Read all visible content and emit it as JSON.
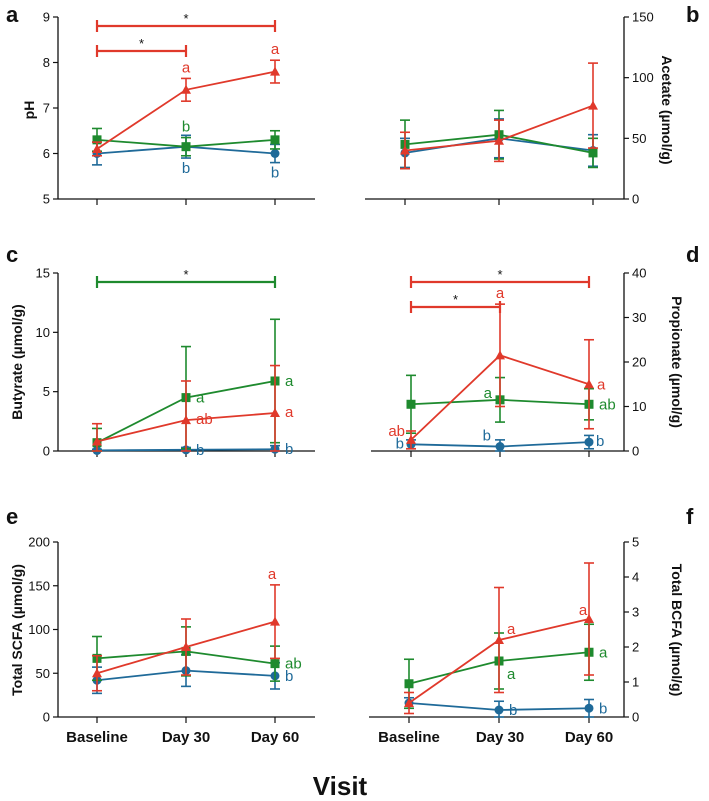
{
  "colors": {
    "red": "#e0392b",
    "green": "#1e8a2e",
    "blue": "#1f6a99",
    "axis": "#111111"
  },
  "x_axis": {
    "categories": [
      "Baseline",
      "Day 30",
      "Day 60"
    ],
    "title": "Visit"
  },
  "chart_data": [
    {
      "panel": "a",
      "type": "line",
      "ylabel": "pH",
      "ylim": [
        5,
        9
      ],
      "yticks": [
        5,
        6,
        7,
        8,
        9
      ],
      "y_axis_side": "left",
      "categories": [
        "Baseline",
        "Day 30",
        "Day 60"
      ],
      "series": [
        {
          "name": "red",
          "marker": "triangle",
          "values": [
            6.1,
            7.4,
            7.8
          ],
          "err": [
            0.15,
            0.25,
            0.25
          ],
          "labels": [
            "",
            "a",
            "a"
          ]
        },
        {
          "name": "green",
          "marker": "square",
          "values": [
            6.3,
            6.15,
            6.3
          ],
          "err": [
            0.25,
            0.2,
            0.2
          ],
          "labels": [
            "",
            "b",
            ""
          ]
        },
        {
          "name": "blue",
          "marker": "circle",
          "values": [
            6.0,
            6.15,
            6.0
          ],
          "err": [
            0.25,
            0.25,
            0.2
          ],
          "labels": [
            "",
            "b",
            "b"
          ]
        }
      ],
      "brackets": [
        {
          "from": 0,
          "to": 2,
          "label": "*",
          "color": "red",
          "level": 0
        },
        {
          "from": 0,
          "to": 1,
          "label": "*",
          "color": "red",
          "level": 1
        }
      ]
    },
    {
      "panel": "b",
      "type": "line",
      "ylabel": "Acetate (µmol/g)",
      "ylim": [
        0,
        150
      ],
      "yticks": [
        0,
        50,
        100,
        150
      ],
      "y_axis_side": "right",
      "categories": [
        "Baseline",
        "Day 30",
        "Day 60"
      ],
      "series": [
        {
          "name": "red",
          "marker": "triangle",
          "values": [
            40,
            48,
            77
          ],
          "err": [
            15,
            17,
            35
          ],
          "labels": [
            "",
            "",
            ""
          ]
        },
        {
          "name": "green",
          "marker": "square",
          "values": [
            45,
            53,
            38
          ],
          "err": [
            20,
            20,
            12
          ],
          "labels": [
            "",
            "",
            ""
          ]
        },
        {
          "name": "blue",
          "marker": "circle",
          "values": [
            38,
            50,
            40
          ],
          "err": [
            12,
            16,
            13
          ],
          "labels": [
            "",
            "",
            ""
          ]
        }
      ],
      "brackets": []
    },
    {
      "panel": "c",
      "type": "line",
      "ylabel": "Butyrate (µmol/g)",
      "ylim": [
        0,
        15
      ],
      "yticks": [
        0,
        5,
        10,
        15
      ],
      "y_axis_side": "left",
      "categories": [
        "Baseline",
        "Day 30",
        "Day 60"
      ],
      "series": [
        {
          "name": "red",
          "marker": "triangle",
          "values": [
            0.8,
            2.6,
            3.2
          ],
          "err": [
            1.5,
            3.3,
            4.0
          ],
          "labels": [
            "",
            "ab",
            "a"
          ]
        },
        {
          "name": "green",
          "marker": "square",
          "values": [
            0.7,
            4.5,
            5.9
          ],
          "err": [
            1.2,
            4.3,
            5.2
          ],
          "labels": [
            "",
            "a",
            "a"
          ]
        },
        {
          "name": "blue",
          "marker": "circle",
          "values": [
            0.05,
            0.1,
            0.15
          ],
          "err": [
            0.1,
            0.2,
            0.3
          ],
          "labels": [
            "",
            "b",
            "b"
          ]
        }
      ],
      "brackets": [
        {
          "from": 0,
          "to": 2,
          "label": "*",
          "color": "green",
          "level": 0
        }
      ]
    },
    {
      "panel": "d",
      "type": "line",
      "ylabel": "Propionate (µmol/g)",
      "ylim": [
        0,
        40
      ],
      "yticks": [
        0,
        10,
        20,
        30,
        40
      ],
      "y_axis_side": "right",
      "categories": [
        "Baseline",
        "Day 30",
        "Day 60"
      ],
      "series": [
        {
          "name": "red",
          "marker": "triangle",
          "values": [
            2.5,
            21.5,
            15
          ],
          "err": [
            2.0,
            11.5,
            10
          ],
          "labels": [
            "ab",
            "a",
            "a"
          ]
        },
        {
          "name": "green",
          "marker": "square",
          "values": [
            10.5,
            11.5,
            10.5
          ],
          "err": [
            6.5,
            5.0,
            3.5
          ],
          "labels": [
            "",
            "a",
            "ab"
          ]
        },
        {
          "name": "blue",
          "marker": "circle",
          "values": [
            1.5,
            1.0,
            2.0
          ],
          "err": [
            1.0,
            1.5,
            1.5
          ],
          "labels": [
            "b",
            "b",
            "b"
          ]
        }
      ],
      "brackets": [
        {
          "from": 0,
          "to": 2,
          "label": "*",
          "color": "red",
          "level": 0
        },
        {
          "from": 0,
          "to": 1,
          "label": "*",
          "color": "red",
          "level": 1
        }
      ]
    },
    {
      "panel": "e",
      "type": "line",
      "ylabel": "Total SCFA (µmol/g)",
      "ylim": [
        0,
        200
      ],
      "yticks": [
        0,
        50,
        100,
        150,
        200
      ],
      "y_axis_side": "left",
      "categories": [
        "Baseline",
        "Day 30",
        "Day 60"
      ],
      "series": [
        {
          "name": "red",
          "marker": "triangle",
          "values": [
            50,
            80,
            109
          ],
          "err": [
            20,
            32,
            42
          ],
          "labels": [
            "",
            "",
            "a"
          ]
        },
        {
          "name": "green",
          "marker": "square",
          "values": [
            67,
            75,
            61
          ],
          "err": [
            25,
            28,
            20
          ],
          "labels": [
            "",
            "",
            "ab"
          ]
        },
        {
          "name": "blue",
          "marker": "circle",
          "values": [
            42,
            53,
            47
          ],
          "err": [
            15,
            18,
            15
          ],
          "labels": [
            "",
            "",
            "b"
          ]
        }
      ],
      "brackets": []
    },
    {
      "panel": "f",
      "type": "line",
      "ylabel": "Total BCFA (µmol/g)",
      "ylim": [
        0,
        5
      ],
      "yticks": [
        0,
        1,
        2,
        3,
        4,
        5
      ],
      "y_axis_side": "right",
      "categories": [
        "Baseline",
        "Day 30",
        "Day 60"
      ],
      "series": [
        {
          "name": "red",
          "marker": "triangle",
          "values": [
            0.4,
            2.2,
            2.8
          ],
          "err": [
            0.3,
            1.5,
            1.6
          ],
          "labels": [
            "",
            "a",
            "a"
          ]
        },
        {
          "name": "green",
          "marker": "square",
          "values": [
            0.95,
            1.6,
            1.85
          ],
          "err": [
            0.7,
            0.8,
            0.8
          ],
          "labels": [
            "",
            "a",
            "a"
          ]
        },
        {
          "name": "blue",
          "marker": "circle",
          "values": [
            0.4,
            0.2,
            0.25
          ],
          "err": [
            0.15,
            0.25,
            0.25
          ],
          "labels": [
            "",
            "b",
            "b"
          ]
        }
      ],
      "brackets": []
    }
  ]
}
